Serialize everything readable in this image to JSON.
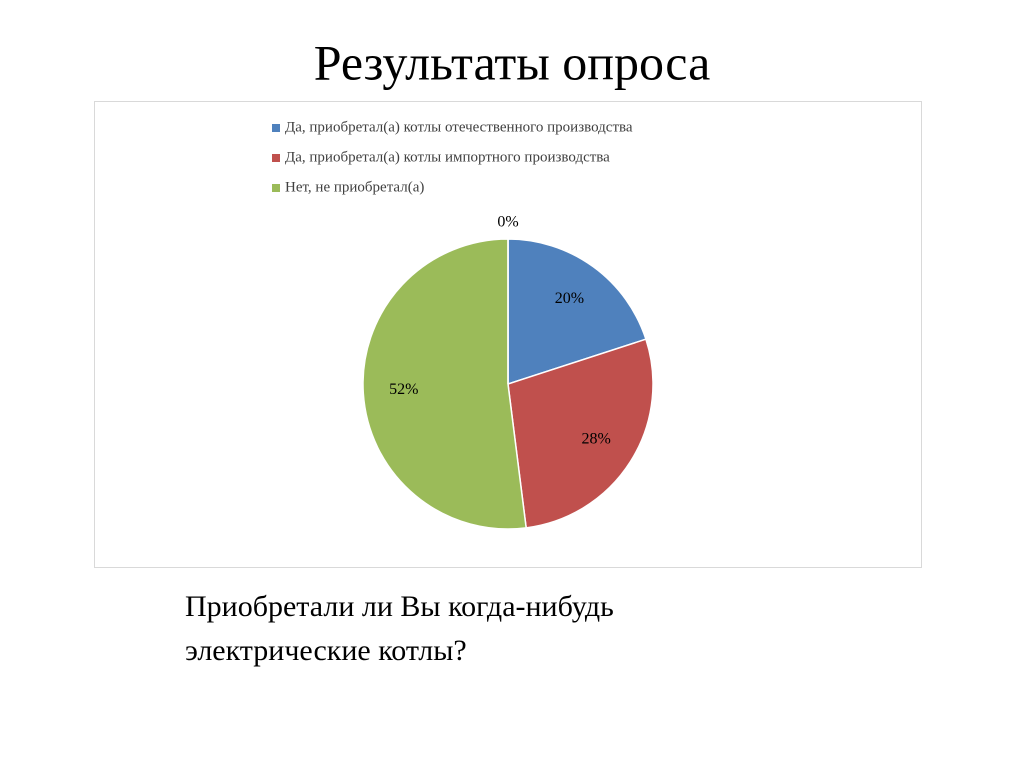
{
  "chart_data": {
    "type": "pie",
    "title": "Результаты опроса",
    "categories": [
      "Да, приобретал(а) котлы отечественного производства",
      "Да, приобретал(а) котлы импортного производства",
      "Нет, не приобретал(а)",
      null
    ],
    "values": [
      20,
      28,
      52,
      0
    ],
    "value_labels": [
      "20%",
      "28%",
      "52%",
      "0%"
    ],
    "colors": [
      "#4f81bd",
      "#c0504d",
      "#9bbb59",
      "#8064a2"
    ],
    "legend": "top",
    "caption": "Приобретали ли Вы когда-нибудь электрические котлы?"
  }
}
